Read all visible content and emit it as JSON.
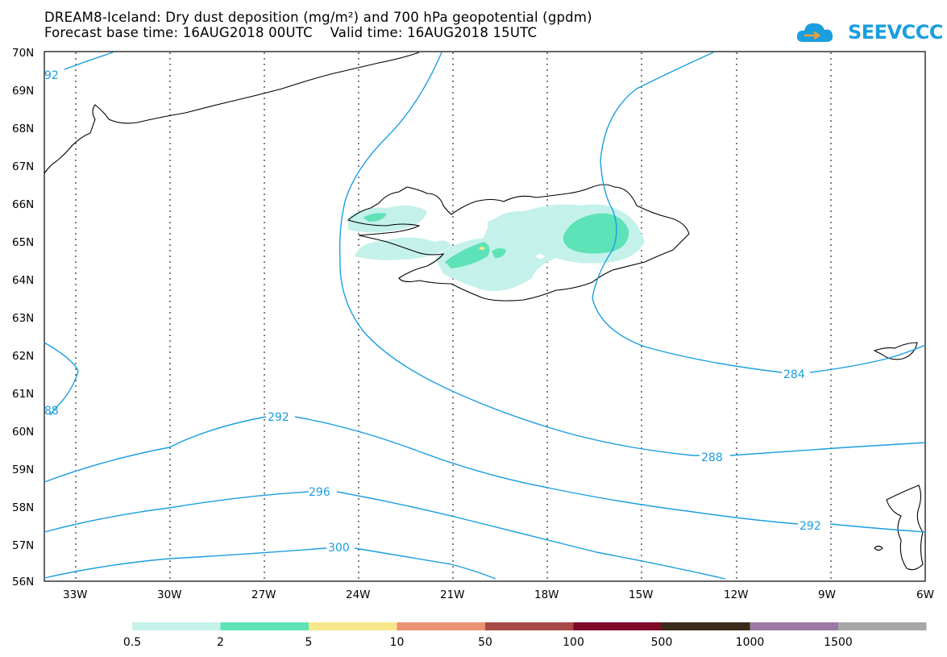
{
  "title": {
    "line1": "DREAM8-Iceland: Dry dust deposition (mg/m²) and 700 hPa geopotential (gpdm)",
    "line2": "Forecast base time: 16AUG2018 00UTC    Valid time: 16AUG2018 15UTC"
  },
  "logo": {
    "text": "SEEVCCC",
    "icon": "cloud-icon",
    "color": "#1a9ee0"
  },
  "map": {
    "lon_range": [
      -34,
      -6
    ],
    "lat_range": [
      56,
      70
    ],
    "lat_labels": [
      "70N",
      "69N",
      "68N",
      "67N",
      "66N",
      "65N",
      "64N",
      "63N",
      "62N",
      "61N",
      "60N",
      "59N",
      "58N",
      "57N",
      "56N"
    ],
    "lon_labels": [
      "33W",
      "30W",
      "27W",
      "24W",
      "21W",
      "18W",
      "15W",
      "12W",
      "9W",
      "6W"
    ],
    "contour_color": "#1a9ee0",
    "contour_labels": [
      {
        "id": "c92",
        "text": "92"
      },
      {
        "id": "c88",
        "text": "88"
      },
      {
        "id": "c292a",
        "text": "292"
      },
      {
        "id": "c296",
        "text": "296"
      },
      {
        "id": "c300",
        "text": "300"
      },
      {
        "id": "c284",
        "text": "284"
      },
      {
        "id": "c288",
        "text": "288"
      },
      {
        "id": "c292b",
        "text": "292"
      }
    ]
  },
  "legend": {
    "labels": [
      "0.5",
      "2",
      "5",
      "10",
      "50",
      "100",
      "500",
      "1000",
      "1500"
    ],
    "colors": [
      "#c4f2ea",
      "#5ee2b8",
      "#f9e88a",
      "#ec9274",
      "#a84a46",
      "#7e0a2a",
      "#3b2a1a",
      "#9a79a3",
      "#a7a7a7"
    ]
  }
}
